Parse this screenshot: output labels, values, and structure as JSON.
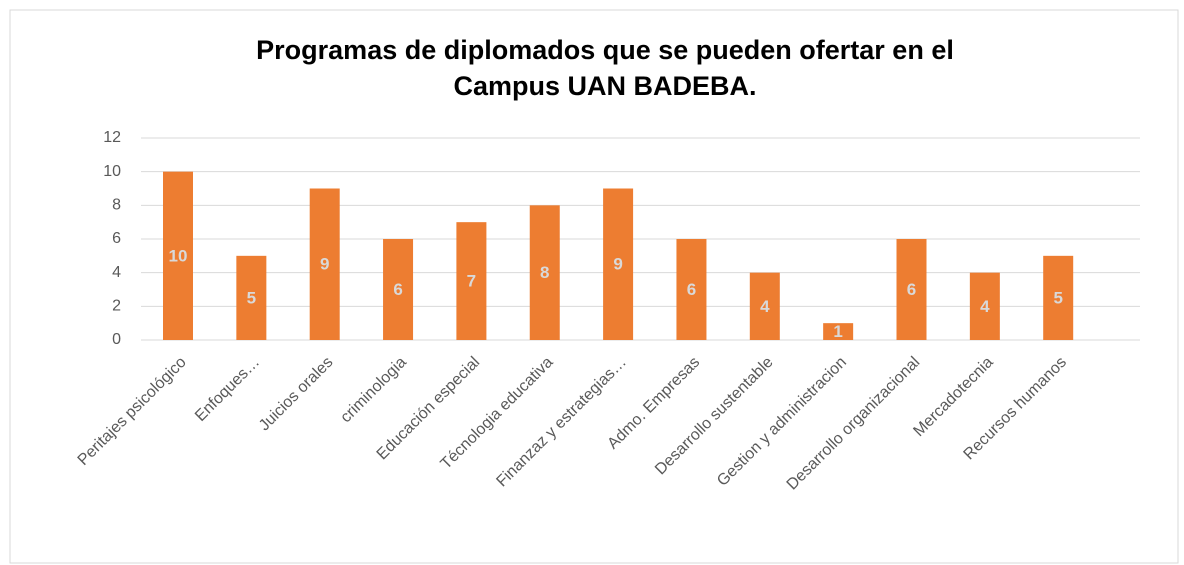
{
  "chart_data": {
    "type": "bar",
    "title": [
      "Programas de diplomados que se pueden ofertar en el",
      "Campus UAN BADEBA."
    ],
    "categories": [
      "Peritajes psicológico",
      "Enfoques…",
      "Juicios orales",
      "criminologia",
      "Educación especial",
      "Técnologia educativa",
      "Finanzaz y estrategias…",
      "Admo. Empresas",
      "Desarrollo sustentable",
      "Gestion y administracion",
      "Desarrollo organizacional",
      "Mercadotecnia",
      "Recursos humanos"
    ],
    "values": [
      10,
      5,
      9,
      6,
      7,
      8,
      9,
      6,
      4,
      1,
      6,
      4,
      5
    ],
    "color": "#ed7d31",
    "ylim": [
      0,
      12
    ],
    "yticks": [
      0,
      2,
      4,
      6,
      8,
      10,
      12
    ],
    "grid": true
  }
}
